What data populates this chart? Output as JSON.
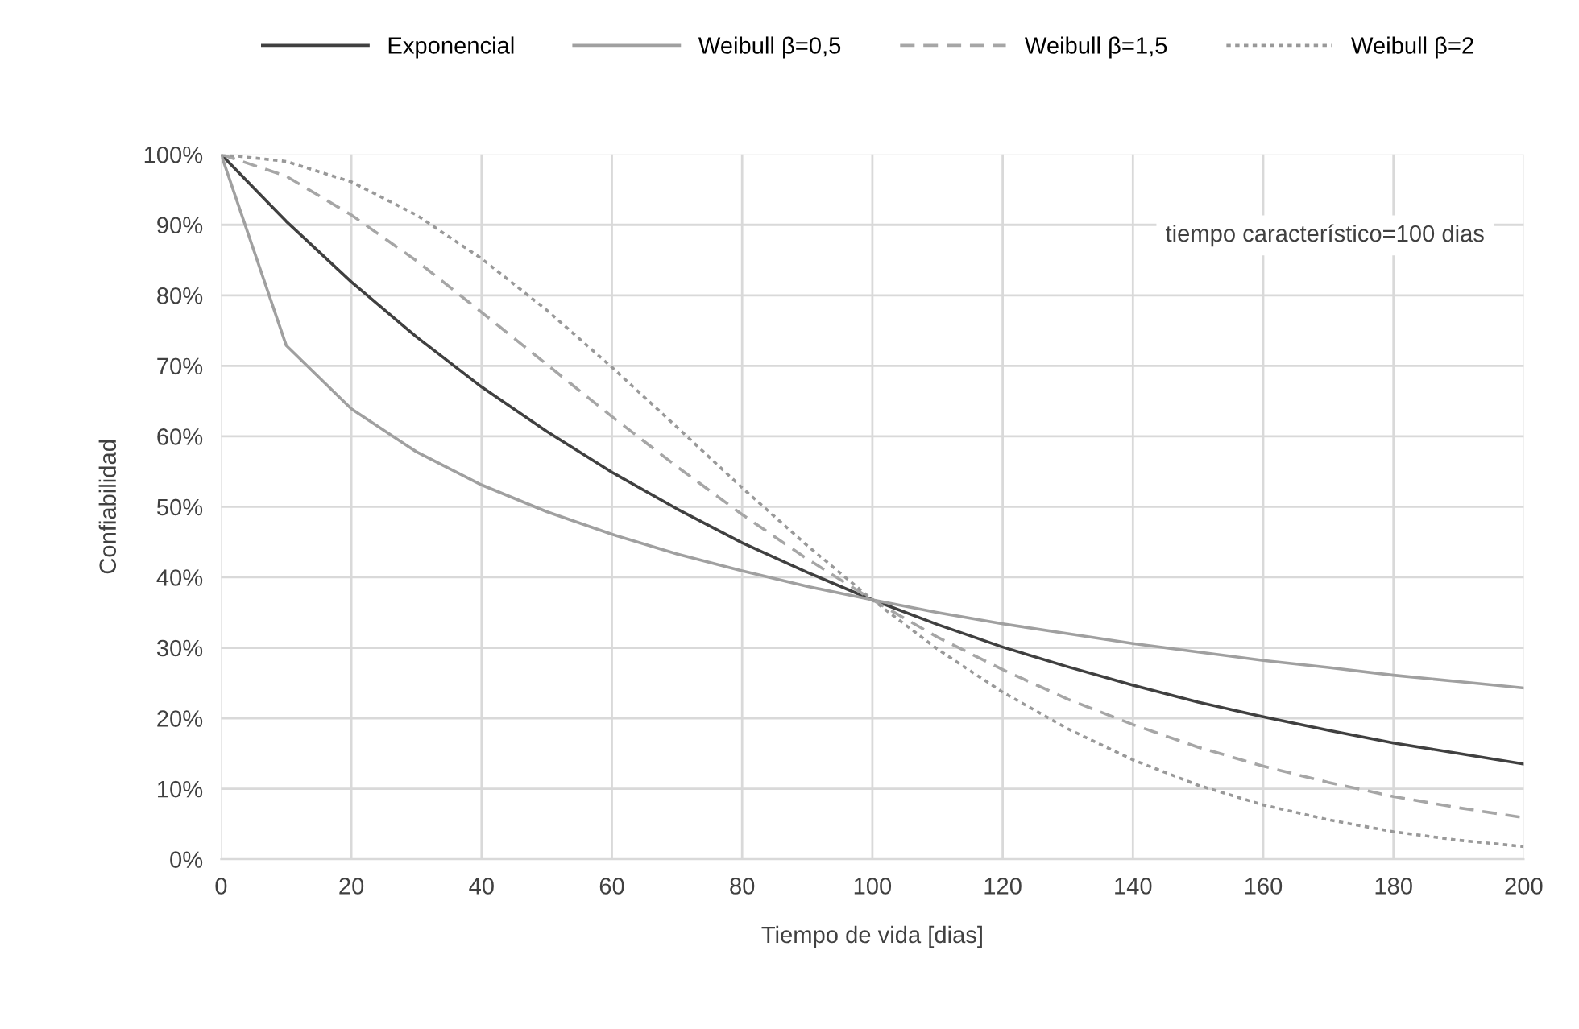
{
  "chart_data": {
    "type": "line",
    "xlabel": "Tiempo de vida [dias]",
    "ylabel": "Confiabilidad",
    "x": [
      0,
      10,
      20,
      30,
      40,
      50,
      60,
      70,
      80,
      90,
      100,
      110,
      120,
      130,
      140,
      150,
      160,
      170,
      180,
      190,
      200
    ],
    "series": [
      {
        "name": "Exponencial",
        "color": "#404040",
        "line_style": "solid",
        "values": [
          100,
          90.5,
          81.9,
          74.1,
          67.0,
          60.7,
          54.9,
          49.7,
          44.9,
          40.7,
          36.8,
          33.3,
          30.1,
          27.3,
          24.7,
          22.3,
          20.2,
          18.3,
          16.5,
          15.0,
          13.5
        ]
      },
      {
        "name": "Weibull β=0,5",
        "color": "#a0a0a0",
        "line_style": "solid",
        "values": [
          100,
          72.9,
          63.9,
          57.8,
          53.1,
          49.3,
          46.1,
          43.3,
          40.9,
          38.7,
          36.8,
          35.0,
          33.4,
          32.0,
          30.6,
          29.4,
          28.2,
          27.2,
          26.1,
          25.2,
          24.3
        ]
      },
      {
        "name": "Weibull β=1,5",
        "color": "#a6a6a6",
        "line_style": "dashed",
        "values": [
          100,
          96.9,
          91.4,
          84.9,
          77.6,
          70.2,
          62.8,
          55.7,
          48.9,
          42.6,
          36.8,
          31.5,
          26.9,
          22.7,
          19.1,
          15.9,
          13.2,
          10.9,
          8.9,
          7.3,
          5.9
        ]
      },
      {
        "name": "Weibull β=2",
        "color": "#999999",
        "line_style": "dotted",
        "values": [
          100,
          99.0,
          96.1,
          91.4,
          85.2,
          77.9,
          69.8,
          61.3,
          52.7,
          44.5,
          36.8,
          29.8,
          23.7,
          18.5,
          14.1,
          10.5,
          7.7,
          5.6,
          3.9,
          2.7,
          1.8
        ]
      }
    ],
    "xlim": [
      0,
      200
    ],
    "xticks": [
      0,
      20,
      40,
      60,
      80,
      100,
      120,
      140,
      160,
      180,
      200
    ],
    "ylim": [
      0,
      100
    ],
    "yticks": [
      {
        "value": 0,
        "label": "0%"
      },
      {
        "value": 10,
        "label": "10%"
      },
      {
        "value": 20,
        "label": "20%"
      },
      {
        "value": 30,
        "label": "30%"
      },
      {
        "value": 40,
        "label": "40%"
      },
      {
        "value": 50,
        "label": "50%"
      },
      {
        "value": 60,
        "label": "60%"
      },
      {
        "value": 70,
        "label": "70%"
      },
      {
        "value": 80,
        "label": "80%"
      },
      {
        "value": 90,
        "label": "90%"
      },
      {
        "value": 100,
        "label": "100%"
      }
    ],
    "annotations": [
      "tiempo característico=100 dias"
    ],
    "grid": true,
    "legend": "top",
    "marker": "none"
  }
}
